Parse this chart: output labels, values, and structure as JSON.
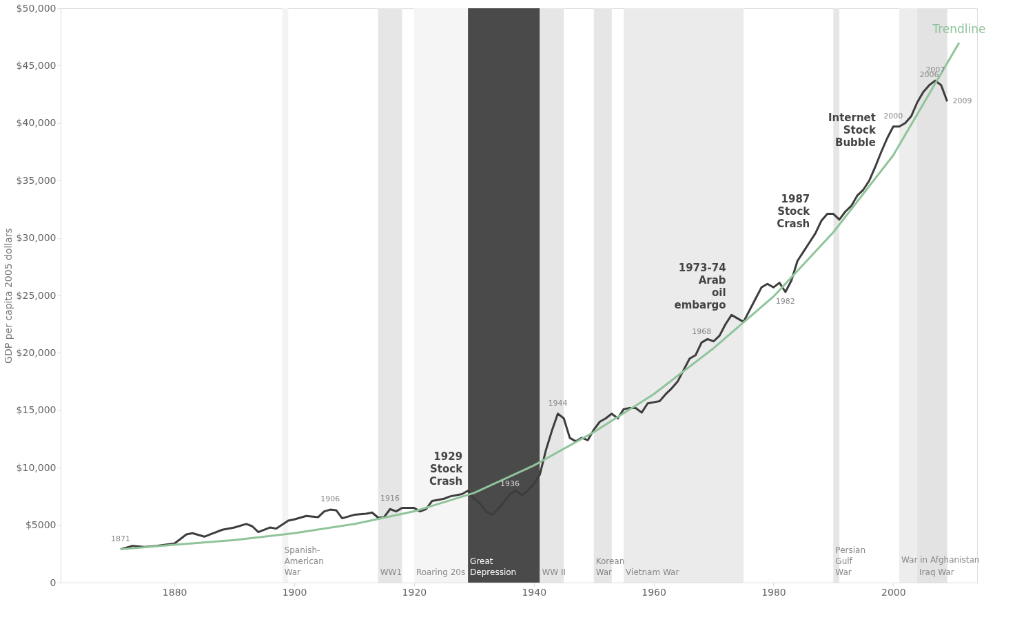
{
  "chart_data": {
    "type": "line",
    "ylabel": "GDP per capita 2005 dollars",
    "x": [
      1871,
      1873,
      1875,
      1877,
      1880,
      1882,
      1883,
      1885,
      1886,
      1888,
      1890,
      1892,
      1893,
      1894,
      1896,
      1897,
      1899,
      1900,
      1902,
      1904,
      1905,
      1906,
      1907,
      1908,
      1910,
      1912,
      1913,
      1914,
      1915,
      1916,
      1917,
      1918,
      1920,
      1921,
      1922,
      1923,
      1925,
      1926,
      1928,
      1929,
      1930,
      1931,
      1932,
      1933,
      1934,
      1935,
      1936,
      1937,
      1938,
      1939,
      1940,
      1941,
      1942,
      1943,
      1944,
      1945,
      1946,
      1947,
      1948,
      1949,
      1950,
      1951,
      1952,
      1953,
      1954,
      1955,
      1956,
      1957,
      1958,
      1959,
      1960,
      1961,
      1962,
      1963,
      1964,
      1965,
      1966,
      1967,
      1968,
      1969,
      1970,
      1971,
      1972,
      1973,
      1974,
      1975,
      1976,
      1977,
      1978,
      1979,
      1980,
      1981,
      1982,
      1983,
      1984,
      1985,
      1986,
      1987,
      1988,
      1989,
      1990,
      1991,
      1992,
      1993,
      1994,
      1995,
      1996,
      1997,
      1998,
      1999,
      2000,
      2001,
      2002,
      2003,
      2004,
      2005,
      2006,
      2007,
      2008,
      2009
    ],
    "series": [
      {
        "color": "#3d3d3d",
        "values": [
          2900,
          3200,
          3100,
          3200,
          3400,
          4200,
          4300,
          4000,
          4200,
          4600,
          4800,
          5100,
          4900,
          4400,
          4800,
          4700,
          5400,
          5500,
          5800,
          5700,
          6200,
          6350,
          6300,
          5600,
          5900,
          6000,
          6100,
          5650,
          5700,
          6400,
          6200,
          6500,
          6500,
          6200,
          6400,
          7100,
          7300,
          7500,
          7700,
          8000,
          7300,
          6900,
          6200,
          5900,
          6400,
          7000,
          7700,
          8000,
          7600,
          8000,
          8600,
          9400,
          11500,
          13200,
          14700,
          14300,
          12600,
          12300,
          12600,
          12400,
          13300,
          14000,
          14300,
          14700,
          14300,
          15100,
          15200,
          15200,
          14800,
          15600,
          15700,
          15800,
          16400,
          16900,
          17500,
          18500,
          19500,
          19800,
          20900,
          21200,
          21000,
          21500,
          22500,
          23300,
          23000,
          22700,
          23700,
          24700,
          25700,
          26000,
          25700,
          26100,
          25300,
          26300,
          28000,
          28800,
          29600,
          30400,
          31500,
          32100,
          32100,
          31600,
          32300,
          32800,
          33700,
          34200,
          35000,
          36200,
          37500,
          38700,
          39700,
          39700,
          40000,
          40600,
          41800,
          42700,
          43300,
          43700,
          43300,
          41900
        ]
      },
      {
        "name": "Trendline",
        "color": "#8fc49a",
        "x": [
          1871,
          1880,
          1890,
          1900,
          1910,
          1920,
          1930,
          1940,
          1950,
          1960,
          1970,
          1980,
          1990,
          2000,
          2011
        ],
        "values": [
          2900,
          3300,
          3700,
          4300,
          5100,
          6200,
          7800,
          10200,
          13100,
          16400,
          20400,
          24900,
          30500,
          37200,
          47000
        ]
      }
    ],
    "xlim": [
      1861,
      2014
    ],
    "ylim": [
      0,
      50000
    ],
    "xticks": [
      1880,
      1900,
      1920,
      1940,
      1960,
      1980,
      2000
    ],
    "yticks": [
      {
        "value": 0,
        "label": "0"
      },
      {
        "value": 5000,
        "label": "$5000"
      },
      {
        "value": 10000,
        "label": "$10,000"
      },
      {
        "value": 15000,
        "label": "$15,000"
      },
      {
        "value": 20000,
        "label": "$20,000"
      },
      {
        "value": 25000,
        "label": "$25,000"
      },
      {
        "value": 30000,
        "label": "$30,000"
      },
      {
        "value": 35000,
        "label": "$35,000"
      },
      {
        "value": 40000,
        "label": "$40,000"
      },
      {
        "value": 45000,
        "label": "$45,000"
      },
      {
        "value": 50000,
        "label": "$50,000"
      }
    ],
    "bands": [
      {
        "axis": "x",
        "from": 1898,
        "to": 1899,
        "label": "Spanish-\nAmerican\nWar",
        "color": "#f3f3f3"
      },
      {
        "axis": "x",
        "from": 1914,
        "to": 1918,
        "label": "WW1",
        "color": "#e6e6e6"
      },
      {
        "axis": "x",
        "from": 1920,
        "to": 1929,
        "label": "Roaring 20s",
        "color": "#f5f5f5"
      },
      {
        "axis": "x",
        "from": 1929,
        "to": 1941,
        "label": "Great\nDepression",
        "color": "#4a4a4a"
      },
      {
        "axis": "x",
        "from": 1941,
        "to": 1945,
        "label": "WW II",
        "color": "#e6e6e6"
      },
      {
        "axis": "x",
        "from": 1950,
        "to": 1953,
        "label": "Korean\nWar",
        "color": "#e6e6e6"
      },
      {
        "axis": "x",
        "from": 1955,
        "to": 1975,
        "label": "Vietnam War",
        "color": "#ebebeb"
      },
      {
        "axis": "x",
        "from": 1990,
        "to": 1991,
        "label": "Persian\nGulf\nWar",
        "color": "#e6e6e6"
      },
      {
        "axis": "x",
        "from": 2001,
        "to": 2009,
        "label": "War in Afghanistan",
        "color": "#ededed"
      },
      {
        "axis": "x",
        "from": 2004,
        "to": 2009,
        "label": "Iraq War",
        "color": "#e3e3e3"
      }
    ],
    "annotations": [
      {
        "text": "1871",
        "x": 1871,
        "y": 2900
      },
      {
        "text": "1906",
        "x": 1906,
        "y": 6350
      },
      {
        "text": "1916",
        "x": 1916,
        "y": 6400
      },
      {
        "text": "1936",
        "x": 1936,
        "y": 7700
      },
      {
        "text": "1944",
        "x": 1944,
        "y": 14700
      },
      {
        "text": "1968",
        "x": 1968,
        "y": 20900
      },
      {
        "text": "1982",
        "x": 1982,
        "y": 25300
      },
      {
        "text": "2000",
        "x": 2000,
        "y": 39700
      },
      {
        "text": "2006",
        "x": 2006,
        "y": 43300
      },
      {
        "text": "2007",
        "x": 2007,
        "y": 43700
      },
      {
        "text": "2009",
        "x": 2009,
        "y": 41900
      },
      {
        "text": "1929\nStock\nCrash",
        "x": 1929,
        "y": 8000
      },
      {
        "text": "1973-74\nArab\noil\nembargo",
        "x": 1973,
        "y": 23300
      },
      {
        "text": "1987\nStock\nCrash",
        "x": 1987,
        "y": 30400
      },
      {
        "text": "Internet\nStock\nBubble",
        "x": 1998,
        "y": 37500
      }
    ],
    "grid": false,
    "marker": "none",
    "line_style": "solid"
  }
}
